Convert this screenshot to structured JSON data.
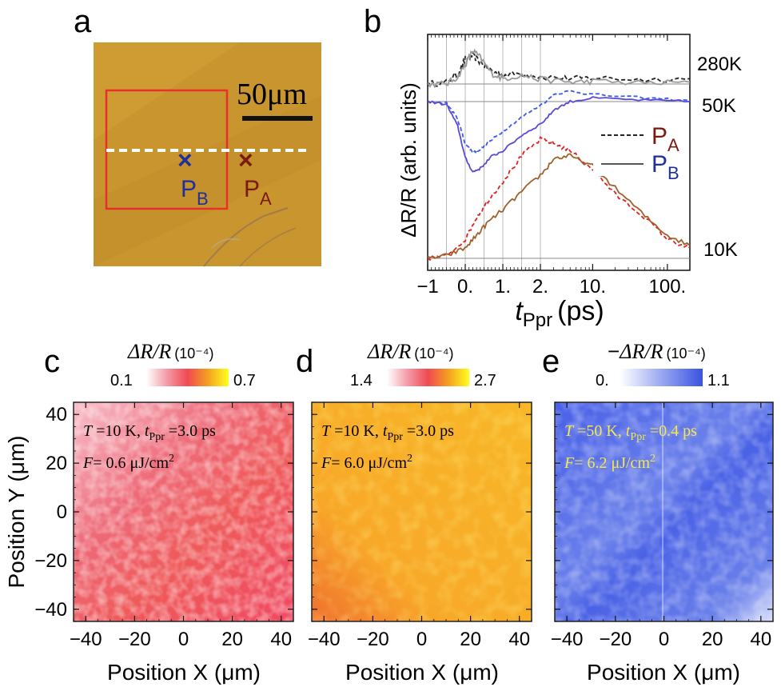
{
  "figure": {
    "panel_labels": [
      "a",
      "b",
      "c",
      "d",
      "e"
    ]
  },
  "panel_a": {
    "scale_bar_label": "50μm",
    "marker_a": {
      "symbol": "×",
      "letter": "P",
      "sub": "A",
      "color": "#7a1a10"
    },
    "marker_b": {
      "symbol": "×",
      "letter": "P",
      "sub": "B",
      "color": "#20309a"
    },
    "image_color": "#c8952e",
    "box_color": "#e8302a"
  },
  "chart_data": [
    {
      "type": "line",
      "panel": "b",
      "title": "",
      "xlabel_italic": "t",
      "xlabel_sub": "Ppr",
      "xlabel_unit": "(ps)",
      "ylabel": "ΔR/R (arb. units)",
      "x_scale": "piecewise: linear -1..2 ps, log 2..200 ps",
      "x_tick_labels": [
        "−1",
        "0.",
        "1.",
        "2.",
        "10.",
        "100."
      ],
      "x_tick_values": [
        -1,
        0,
        1,
        2,
        10,
        100
      ],
      "xlim": [
        -1,
        200
      ],
      "legend": [
        {
          "style": "dashed",
          "letter": "P",
          "sub": "A"
        },
        {
          "style": "solid",
          "letter": "P",
          "sub": "B"
        }
      ],
      "curve_labels": [
        "280K",
        "50K",
        "10K"
      ],
      "series": [
        {
          "name": "280K P_A",
          "style": "dashed",
          "color": "#222222",
          "x": [
            -1,
            -0.5,
            -0.2,
            0,
            0.2,
            0.4,
            0.7,
            1,
            1.5,
            2,
            5,
            10,
            50,
            200
          ],
          "y": [
            0,
            0.02,
            0.12,
            0.28,
            0.32,
            0.25,
            0.15,
            0.1,
            0.12,
            0.08,
            0.06,
            0.07,
            0.05,
            0.06
          ]
        },
        {
          "name": "280K P_B",
          "style": "solid",
          "color": "#999999",
          "x": [
            -1,
            -0.5,
            -0.2,
            0,
            0.2,
            0.4,
            0.7,
            1,
            1.5,
            2,
            5,
            10,
            50,
            200
          ],
          "y": [
            0,
            0.0,
            0.08,
            0.22,
            0.38,
            0.3,
            0.12,
            0.06,
            0.1,
            0.05,
            0.02,
            0.03,
            0.01,
            0.02
          ]
        },
        {
          "name": "50K P_A",
          "style": "dashed",
          "color": "#3a5ae8",
          "x": [
            -1,
            -0.5,
            -0.2,
            0,
            0.2,
            0.4,
            0.7,
            1,
            1.5,
            2,
            3,
            5,
            10,
            50,
            200
          ],
          "y": [
            0,
            -0.02,
            -0.25,
            -0.6,
            -0.72,
            -0.68,
            -0.55,
            -0.42,
            -0.22,
            -0.05,
            0.1,
            0.15,
            0.1,
            0.05,
            0.02
          ]
        },
        {
          "name": "50K P_B",
          "style": "solid",
          "color": "#5a4ad8",
          "x": [
            -1,
            -0.5,
            -0.2,
            0,
            0.2,
            0.4,
            0.7,
            1,
            1.5,
            2,
            3,
            5,
            10,
            50,
            200
          ],
          "y": [
            0,
            -0.04,
            -0.35,
            -0.8,
            -1.0,
            -0.95,
            -0.78,
            -0.7,
            -0.48,
            -0.32,
            -0.12,
            0.0,
            0.05,
            0.02,
            0.0
          ]
        },
        {
          "name": "10K P_A",
          "style": "dashed",
          "color": "#e02020",
          "x": [
            -1,
            -0.5,
            0,
            0.3,
            0.6,
            1,
            1.5,
            2,
            3,
            5,
            10,
            20,
            50,
            100,
            200
          ],
          "y": [
            0,
            0.02,
            0.15,
            0.32,
            0.45,
            0.6,
            0.8,
            0.93,
            0.9,
            0.84,
            0.7,
            0.5,
            0.32,
            0.15,
            0.08
          ]
        },
        {
          "name": "10K P_B",
          "style": "solid",
          "color": "#a0602a",
          "x": [
            -1,
            -0.5,
            0,
            0.3,
            0.6,
            1,
            1.5,
            2,
            3,
            5,
            10,
            20,
            50,
            100,
            200
          ],
          "y": [
            0,
            0.02,
            0.08,
            0.18,
            0.28,
            0.38,
            0.52,
            0.65,
            0.78,
            0.8,
            0.72,
            0.55,
            0.33,
            0.18,
            0.1
          ]
        }
      ]
    },
    {
      "type": "heatmap",
      "panel": "c",
      "colorbar_label": "ΔR/R",
      "colorbar_unit": "(10⁻⁴)",
      "colorbar_min_label": "0.1",
      "colorbar_max_label": "0.7",
      "colorbar_range": [
        0.1,
        0.7
      ],
      "annot_line1_T": "T",
      "annot_line1_rest": " =10 K, ",
      "annot_line1_t": "t",
      "annot_line1_sub": "Ppr",
      "annot_line1_val": " =3.0 ps",
      "annot_line2_F": "F",
      "annot_line2_val": "= 0.6 μJ/cm",
      "annot_line2_sup": "2",
      "annot_color": "#111111",
      "xlabel": "Position X (μm)",
      "ylabel": "Position Y (μm)",
      "xlim": [
        -45,
        45
      ],
      "ylim": [
        -45,
        45
      ],
      "x_tick_labels": [
        "−40",
        "−20",
        "0",
        "20",
        "40"
      ],
      "y_tick_labels": [
        "40",
        "20",
        "0",
        "−20",
        "−40"
      ],
      "colors": [
        "#ffffff",
        "#f59aa8",
        "#ef4a52",
        "#f4a020",
        "#ffff20"
      ]
    },
    {
      "type": "heatmap",
      "panel": "d",
      "colorbar_label": "ΔR/R",
      "colorbar_unit": "(10⁻⁴)",
      "colorbar_min_label": "1.4",
      "colorbar_max_label": "2.7",
      "colorbar_range": [
        1.4,
        2.7
      ],
      "annot_line1_T": "T",
      "annot_line1_rest": " =10 K, ",
      "annot_line1_t": "t",
      "annot_line1_sub": "Ppr",
      "annot_line1_val": " =3.0 ps",
      "annot_line2_F": "F",
      "annot_line2_val": "= 6.0 μJ/cm",
      "annot_line2_sup": "2",
      "annot_color": "#111111",
      "xlabel": "Position X (μm)",
      "xlim": [
        -45,
        45
      ],
      "ylim": [
        -45,
        45
      ],
      "x_tick_labels": [
        "−40",
        "−20",
        "0",
        "20",
        "40"
      ],
      "colors": [
        "#ffffff",
        "#f59aa8",
        "#ef4a52",
        "#f4a020",
        "#ffff20"
      ]
    },
    {
      "type": "heatmap",
      "panel": "e",
      "colorbar_label_prefix": "−",
      "colorbar_label": "ΔR/R",
      "colorbar_unit": "(10⁻⁴)",
      "colorbar_min_label": "0.",
      "colorbar_max_label": "1.1",
      "colorbar_range": [
        0,
        1.1
      ],
      "annot_line1_T": "T",
      "annot_line1_rest": " =50 K, ",
      "annot_line1_t": "t",
      "annot_line1_sub": "Ppr",
      "annot_line1_val": " =0.4 ps",
      "annot_line2_F": "F",
      "annot_line2_val": "= 6.2 μJ/cm",
      "annot_line2_sup": "2",
      "annot_color": "#f5e84a",
      "xlabel": "Position X (μm)",
      "xlim": [
        -45,
        45
      ],
      "ylim": [
        -45,
        45
      ],
      "x_tick_labels": [
        "−40",
        "−20",
        "0",
        "20",
        "40"
      ],
      "colors": [
        "#ffffff",
        "#9aa8f0",
        "#3a52e0"
      ]
    }
  ]
}
